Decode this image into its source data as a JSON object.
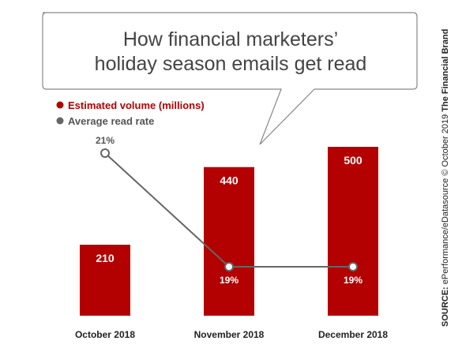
{
  "chart_data": {
    "type": "bar",
    "title": "How financial marketers’ holiday season emails get read",
    "title_lines": [
      "How financial marketers’",
      "holiday season emails get read"
    ],
    "categories": [
      "October 2018",
      "November 2018",
      "December 2018"
    ],
    "series": [
      {
        "name": "Estimated volume (millions)",
        "type": "bar",
        "values": [
          210,
          440,
          500
        ],
        "labels": [
          "210",
          "440",
          "500"
        ],
        "color": "#b30000"
      },
      {
        "name": "Average read rate",
        "type": "line",
        "values": [
          21,
          19,
          19
        ],
        "labels": [
          "21%",
          "19%",
          "19%"
        ],
        "color": "#666666"
      }
    ],
    "legend_position": "top-left",
    "grid": false
  },
  "source": {
    "prefix": "SOURCE:",
    "text": " ePerformance/eDatasource ",
    "copyright": "© October 2019 ",
    "brand": "The Financial Brand"
  }
}
